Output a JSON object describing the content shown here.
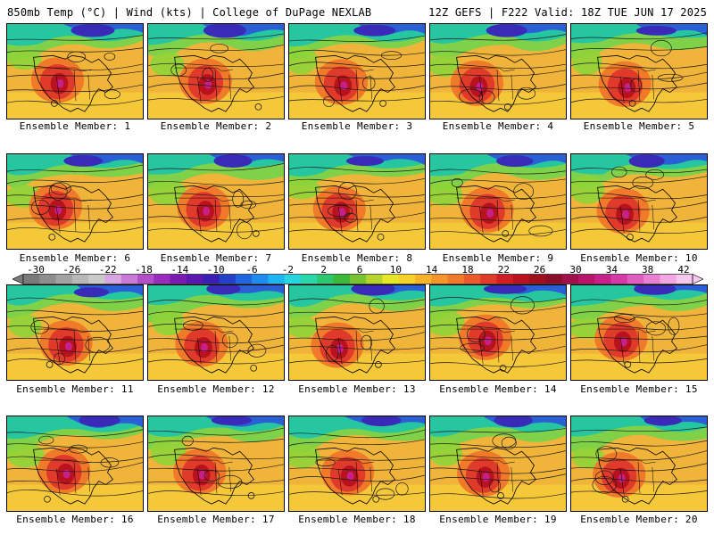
{
  "header": {
    "left": "850mb Temp (°C) | Wind (kts) | College of DuPage NEXLAB",
    "right": "12Z GEFS | F222 Valid: 18Z TUE JUN 17 2025"
  },
  "members": [
    {
      "label": "Ensemble Member: 1"
    },
    {
      "label": "Ensemble Member: 2"
    },
    {
      "label": "Ensemble Member: 3"
    },
    {
      "label": "Ensemble Member: 4"
    },
    {
      "label": "Ensemble Member: 5"
    },
    {
      "label": "Ensemble Member: 6"
    },
    {
      "label": "Ensemble Member: 7"
    },
    {
      "label": "Ensemble Member: 8"
    },
    {
      "label": "Ensemble Member: 9"
    },
    {
      "label": "Ensemble Member: 10"
    },
    {
      "label": "Ensemble Member: 11"
    },
    {
      "label": "Ensemble Member: 12"
    },
    {
      "label": "Ensemble Member: 13"
    },
    {
      "label": "Ensemble Member: 14"
    },
    {
      "label": "Ensemble Member: 15"
    },
    {
      "label": "Ensemble Member: 16"
    },
    {
      "label": "Ensemble Member: 17"
    },
    {
      "label": "Ensemble Member: 18"
    },
    {
      "label": "Ensemble Member: 19"
    },
    {
      "label": "Ensemble Member: 20"
    }
  ],
  "colorbar": {
    "ticks": [
      "-30",
      "-26",
      "-22",
      "-18",
      "-14",
      "-10",
      "-6",
      "-2",
      "2",
      "6",
      "10",
      "14",
      "18",
      "22",
      "26",
      "30",
      "34",
      "38",
      "42"
    ],
    "colors": [
      "#7a7a7a",
      "#8e8e8e",
      "#a3a3a3",
      "#b8b8b8",
      "#c9c9c9",
      "#d8a6e0",
      "#c77ad6",
      "#b24fc9",
      "#9a2bbf",
      "#7a1ab3",
      "#5a18b0",
      "#3b1fb5",
      "#2440c8",
      "#1f66e0",
      "#1e8cf0",
      "#1fb4f2",
      "#27d4e0",
      "#2bd6a8",
      "#2cc770",
      "#3cb83a",
      "#79c232",
      "#b6d42e",
      "#e6e62b",
      "#f5d12a",
      "#f7b42a",
      "#f5962a",
      "#f07a2a",
      "#ea5a2a",
      "#e03a2a",
      "#d11e24",
      "#b8121e",
      "#a0101c",
      "#8a0e2a",
      "#a0104a",
      "#b8156a",
      "#c8208a",
      "#d63aa8",
      "#e05cc0",
      "#ea80d4",
      "#f2a6e2",
      "#f7c8ee"
    ]
  }
}
